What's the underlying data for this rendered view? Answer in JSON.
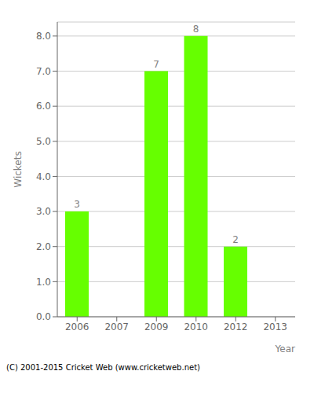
{
  "chart_data": {
    "type": "bar",
    "categories": [
      "2006",
      "2007",
      "2009",
      "2010",
      "2012",
      "2013"
    ],
    "values": [
      3,
      0,
      7,
      8,
      2,
      0
    ],
    "color": "#66ff00",
    "xlabel": "Year",
    "ylabel": "Wickets",
    "ylim": [
      0,
      8.4
    ],
    "yticks": [
      {
        "value": 0,
        "label": "0.0"
      },
      {
        "value": 1,
        "label": "1.0"
      },
      {
        "value": 2,
        "label": "2.0"
      },
      {
        "value": 3,
        "label": "3.0"
      },
      {
        "value": 4,
        "label": "4.0"
      },
      {
        "value": 5,
        "label": "5.0"
      },
      {
        "value": 6,
        "label": "6.0"
      },
      {
        "value": 7,
        "label": "7.0"
      },
      {
        "value": 8,
        "label": "8.0"
      }
    ],
    "grid": true,
    "data_labels": true,
    "annotations": [
      "(C) 2001-2015 Cricket Web (www.cricketweb.net)"
    ]
  }
}
